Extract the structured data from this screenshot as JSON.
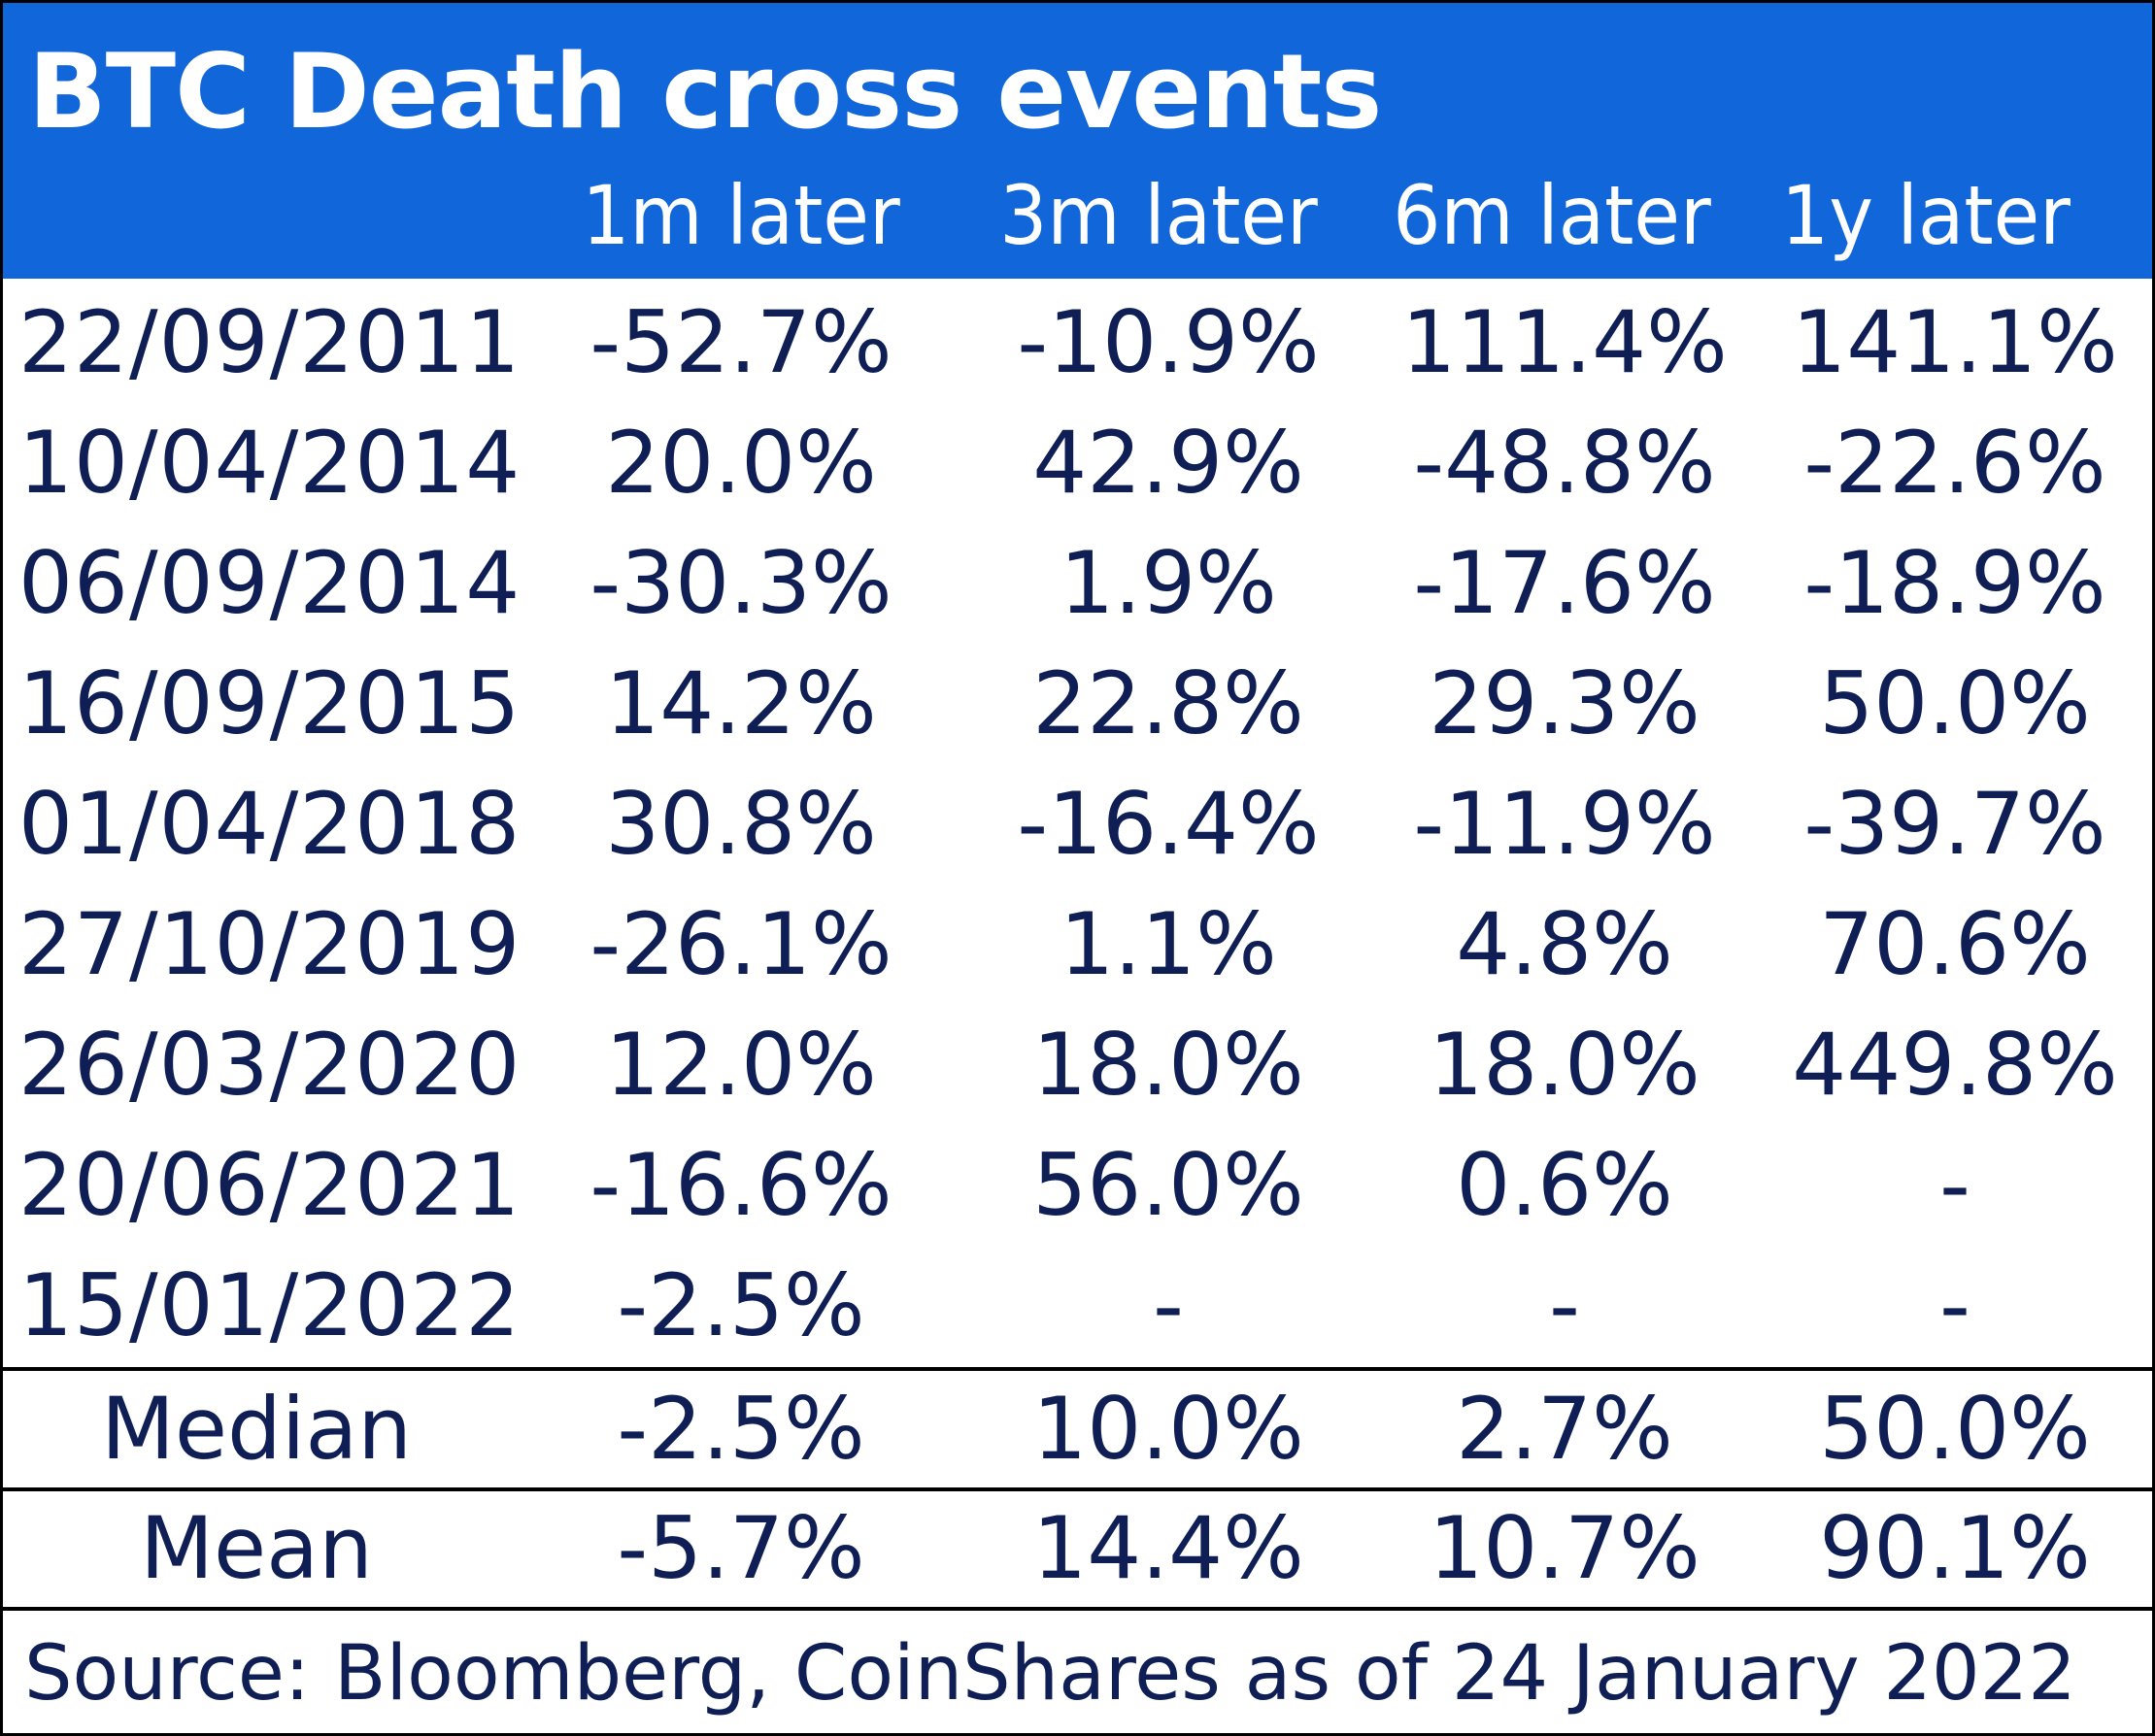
{
  "chart_data": {
    "type": "table",
    "title": "BTC Death cross events",
    "columns": [
      "",
      "1m later",
      "3m later",
      "6m later",
      "1y later"
    ],
    "rows": [
      {
        "date": "22/09/2011",
        "values": [
          "-52.7%",
          "-10.9%",
          "111.4%",
          "141.1%"
        ]
      },
      {
        "date": "10/04/2014",
        "values": [
          "20.0%",
          "42.9%",
          "-48.8%",
          "-22.6%"
        ]
      },
      {
        "date": "06/09/2014",
        "values": [
          "-30.3%",
          "1.9%",
          "-17.6%",
          "-18.9%"
        ]
      },
      {
        "date": "16/09/2015",
        "values": [
          "14.2%",
          "22.8%",
          "29.3%",
          "50.0%"
        ]
      },
      {
        "date": "01/04/2018",
        "values": [
          "30.8%",
          "-16.4%",
          "-11.9%",
          "-39.7%"
        ]
      },
      {
        "date": "27/10/2019",
        "values": [
          "-26.1%",
          "1.1%",
          "4.8%",
          "70.6%"
        ]
      },
      {
        "date": "26/03/2020",
        "values": [
          "12.0%",
          "18.0%",
          "18.0%",
          "449.8%"
        ]
      },
      {
        "date": "20/06/2021",
        "values": [
          "-16.6%",
          "56.0%",
          "0.6%",
          "-"
        ]
      },
      {
        "date": "15/01/2022",
        "values": [
          "-2.5%",
          "-",
          "-",
          "-"
        ]
      }
    ],
    "summary": [
      {
        "label": "Median",
        "values": [
          "-2.5%",
          "10.0%",
          "2.7%",
          "50.0%"
        ]
      },
      {
        "label": "Mean",
        "values": [
          "-5.7%",
          "14.4%",
          "10.7%",
          "90.1%"
        ]
      }
    ],
    "source": "Source: Bloomberg, CoinShares as of 24 January 2022"
  },
  "colors": {
    "header_bg": "#1166d9",
    "header_text": "#ffffff",
    "body_text": "#0f1f55",
    "rule": "#000000"
  }
}
